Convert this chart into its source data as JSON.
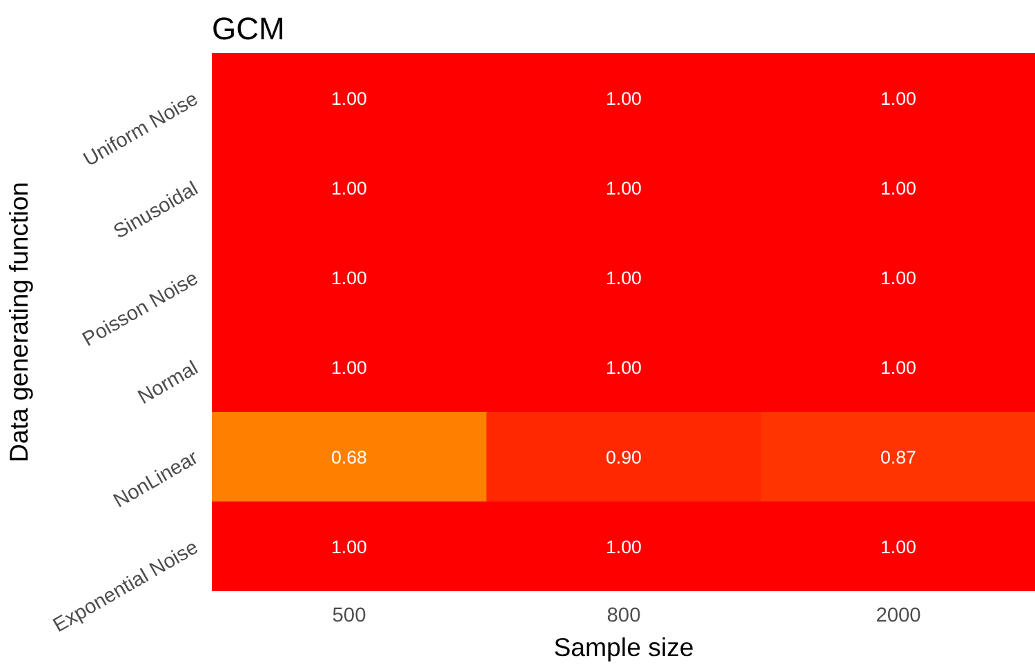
{
  "chart_data": {
    "type": "heatmap",
    "title": "GCM",
    "xlabel": "Sample size",
    "ylabel": "Data generating function",
    "categories": [
      "500",
      "800",
      "2000"
    ],
    "y_categories": [
      "Uniform Noise",
      "Sinusoidal",
      "Poisson Noise",
      "Normal",
      "NonLinear",
      "Exponential Noise"
    ],
    "cells": [
      [
        1.0,
        1.0,
        1.0
      ],
      [
        1.0,
        1.0,
        1.0
      ],
      [
        1.0,
        1.0,
        1.0
      ],
      [
        1.0,
        1.0,
        1.0
      ],
      [
        0.68,
        0.9,
        0.87
      ],
      [
        1.0,
        1.0,
        1.0
      ]
    ],
    "cell_labels": [
      [
        "1.00",
        "1.00",
        "1.00"
      ],
      [
        "1.00",
        "1.00",
        "1.00"
      ],
      [
        "1.00",
        "1.00",
        "1.00"
      ],
      [
        "1.00",
        "1.00",
        "1.00"
      ],
      [
        "0.68",
        "0.90",
        "0.87"
      ],
      [
        "1.00",
        "1.00",
        "1.00"
      ]
    ]
  }
}
